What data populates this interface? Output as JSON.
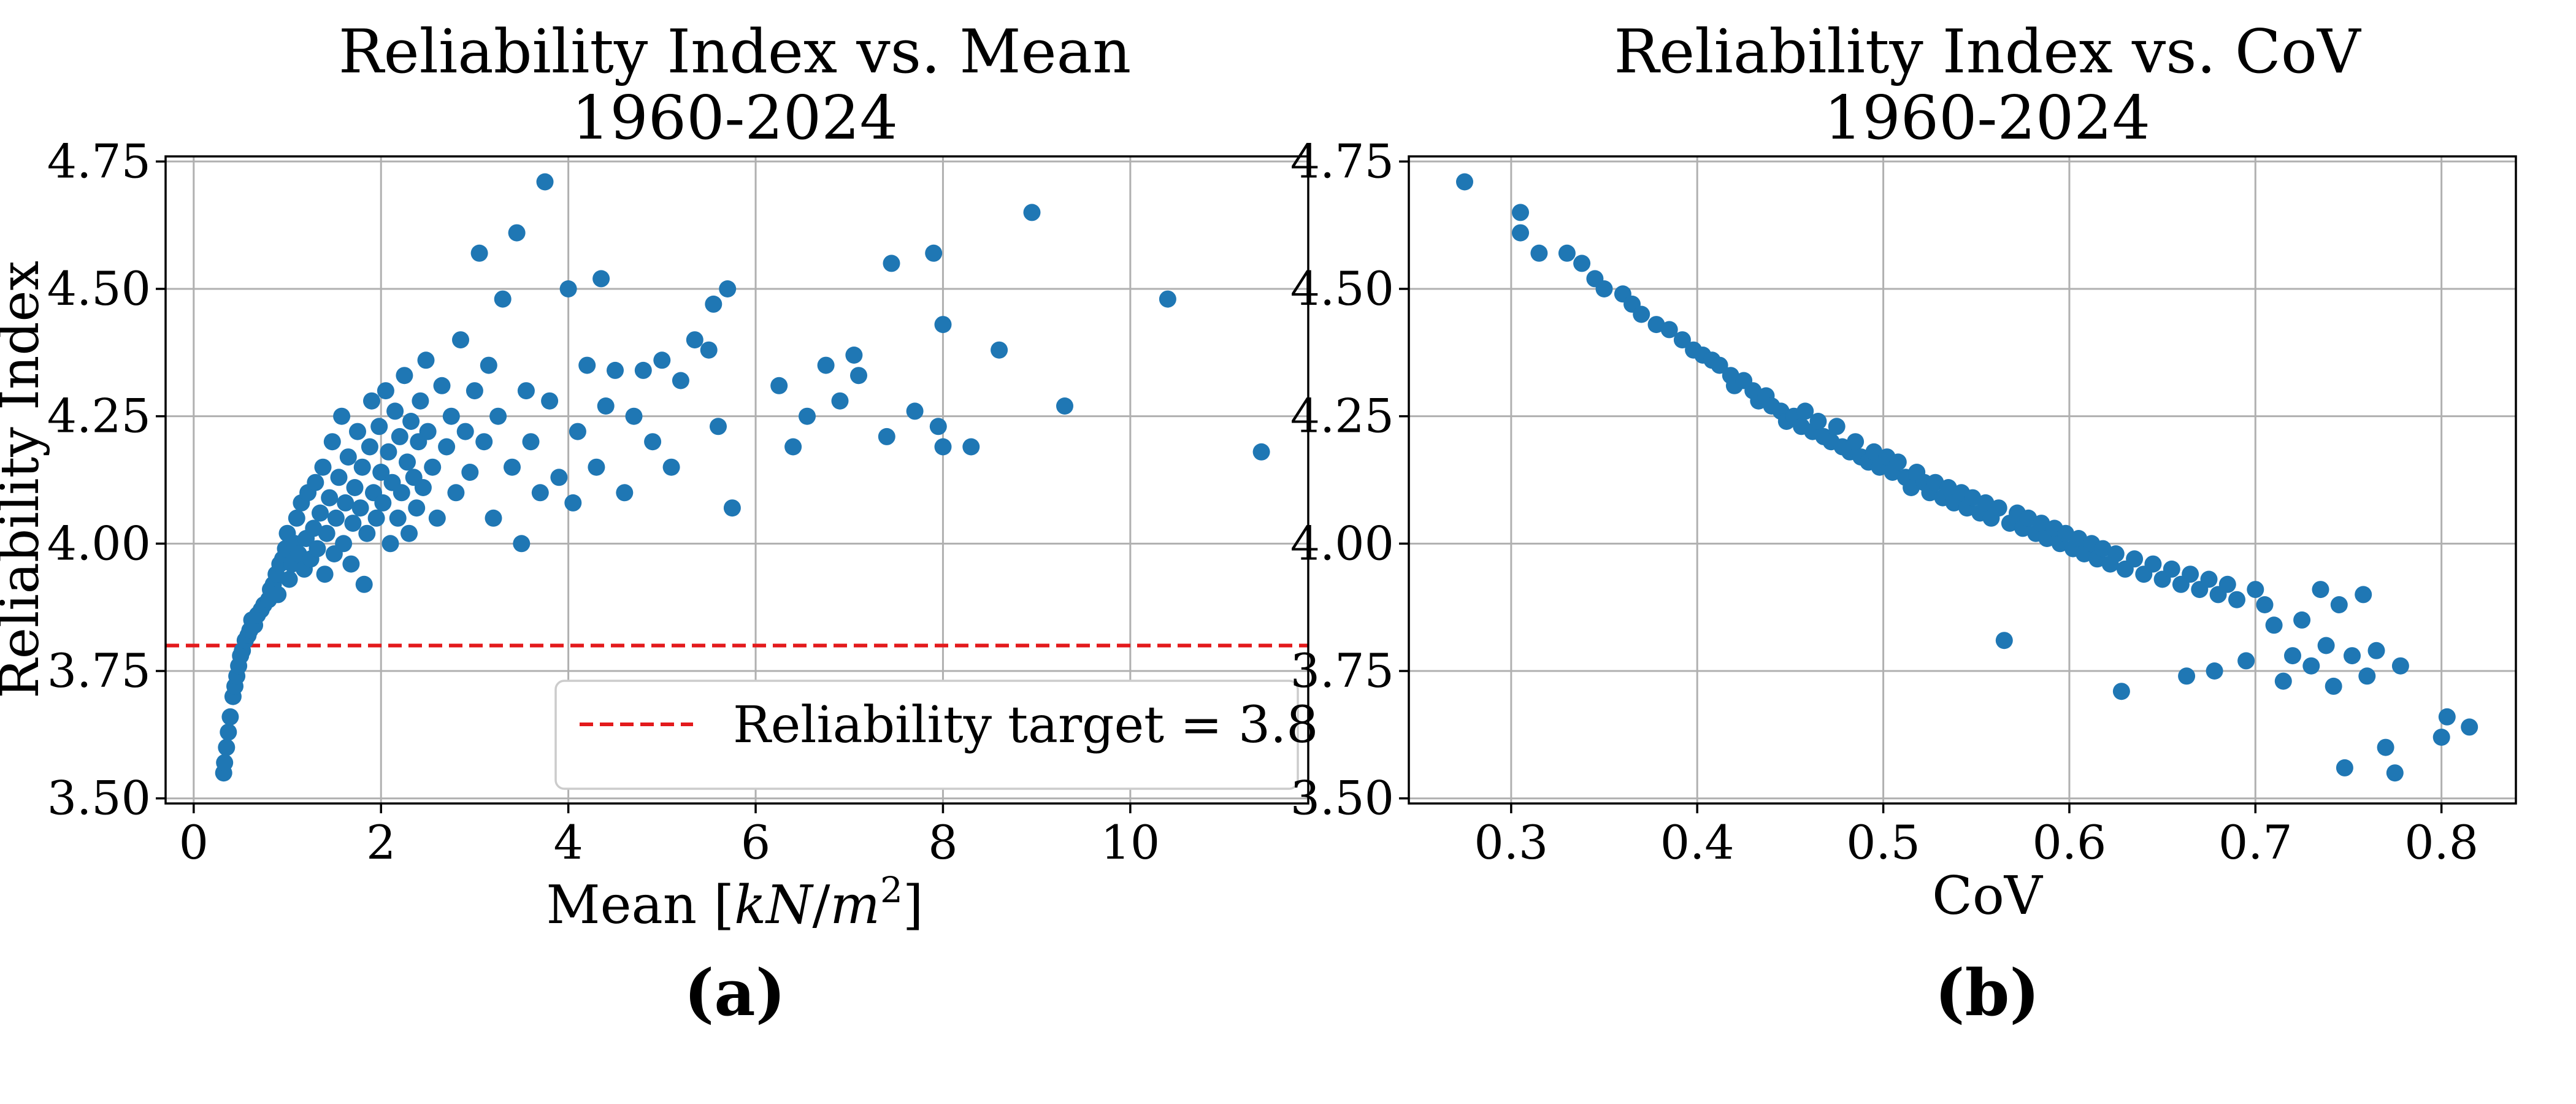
{
  "colors": {
    "marker": "#1f77b4",
    "target_line": "#e31a1c",
    "grid": "#b0b0b0",
    "axes": "#000000"
  },
  "chart_data": [
    {
      "type": "scatter",
      "panel_label": "(a)",
      "title": "Reliability Index vs. Mean",
      "subtitle": "1960-2024",
      "xlabel": "Mean [kN/m²]",
      "ylabel": "Reliability Index",
      "xlim": [
        -0.3,
        11.9
      ],
      "ylim": [
        3.49,
        4.76
      ],
      "xticks": [
        0,
        2,
        4,
        6,
        8,
        10
      ],
      "yticks": [
        3.5,
        3.75,
        4.0,
        4.25,
        4.5,
        4.75
      ],
      "xtick_labels": [
        "0",
        "2",
        "4",
        "6",
        "8",
        "10"
      ],
      "ytick_labels": [
        "3.50",
        "3.75",
        "4.00",
        "4.25",
        "4.50",
        "4.75"
      ],
      "grid": true,
      "legend_position": "lower-right",
      "reference_line": {
        "orientation": "horizontal",
        "y": 3.8,
        "style": "dashed",
        "label": "Reliability target = 3.8"
      },
      "points": [
        [
          0.32,
          3.55
        ],
        [
          0.33,
          3.57
        ],
        [
          0.35,
          3.6
        ],
        [
          0.37,
          3.63
        ],
        [
          0.39,
          3.66
        ],
        [
          0.42,
          3.7
        ],
        [
          0.44,
          3.72
        ],
        [
          0.46,
          3.74
        ],
        [
          0.48,
          3.76
        ],
        [
          0.5,
          3.78
        ],
        [
          0.52,
          3.79
        ],
        [
          0.55,
          3.81
        ],
        [
          0.58,
          3.82
        ],
        [
          0.6,
          3.83
        ],
        [
          0.62,
          3.85
        ],
        [
          0.65,
          3.84
        ],
        [
          0.68,
          3.86
        ],
        [
          0.72,
          3.87
        ],
        [
          0.75,
          3.88
        ],
        [
          0.8,
          3.89
        ],
        [
          0.82,
          3.91
        ],
        [
          0.85,
          3.92
        ],
        [
          0.88,
          3.94
        ],
        [
          0.9,
          3.9
        ],
        [
          0.92,
          3.96
        ],
        [
          0.95,
          3.97
        ],
        [
          0.98,
          3.99
        ],
        [
          1.0,
          4.02
        ],
        [
          1.02,
          3.93
        ],
        [
          1.05,
          3.96
        ],
        [
          1.08,
          4.0
        ],
        [
          1.1,
          4.05
        ],
        [
          1.12,
          3.98
        ],
        [
          1.15,
          4.08
        ],
        [
          1.18,
          3.95
        ],
        [
          1.2,
          4.01
        ],
        [
          1.22,
          4.1
        ],
        [
          1.25,
          3.97
        ],
        [
          1.28,
          4.03
        ],
        [
          1.3,
          4.12
        ],
        [
          1.32,
          3.99
        ],
        [
          1.35,
          4.06
        ],
        [
          1.38,
          4.15
        ],
        [
          1.4,
          3.94
        ],
        [
          1.42,
          4.02
        ],
        [
          1.45,
          4.09
        ],
        [
          1.48,
          4.2
        ],
        [
          1.5,
          3.98
        ],
        [
          1.52,
          4.05
        ],
        [
          1.55,
          4.13
        ],
        [
          1.58,
          4.25
        ],
        [
          1.6,
          4.0
        ],
        [
          1.62,
          4.08
        ],
        [
          1.65,
          4.17
        ],
        [
          1.68,
          3.96
        ],
        [
          1.7,
          4.04
        ],
        [
          1.72,
          4.11
        ],
        [
          1.75,
          4.22
        ],
        [
          1.78,
          4.07
        ],
        [
          1.8,
          4.15
        ],
        [
          1.82,
          3.92
        ],
        [
          1.85,
          4.02
        ],
        [
          1.88,
          4.19
        ],
        [
          1.9,
          4.28
        ],
        [
          1.92,
          4.1
        ],
        [
          1.95,
          4.05
        ],
        [
          1.98,
          4.23
        ],
        [
          2.0,
          4.14
        ],
        [
          2.02,
          4.08
        ],
        [
          2.05,
          4.3
        ],
        [
          2.08,
          4.18
        ],
        [
          2.1,
          4.0
        ],
        [
          2.12,
          4.12
        ],
        [
          2.15,
          4.26
        ],
        [
          2.18,
          4.05
        ],
        [
          2.2,
          4.21
        ],
        [
          2.22,
          4.1
        ],
        [
          2.25,
          4.33
        ],
        [
          2.28,
          4.16
        ],
        [
          2.3,
          4.02
        ],
        [
          2.32,
          4.24
        ],
        [
          2.35,
          4.13
        ],
        [
          2.38,
          4.07
        ],
        [
          2.4,
          4.2
        ],
        [
          2.42,
          4.28
        ],
        [
          2.45,
          4.11
        ],
        [
          2.48,
          4.36
        ],
        [
          2.5,
          4.22
        ],
        [
          2.55,
          4.15
        ],
        [
          2.6,
          4.05
        ],
        [
          2.65,
          4.31
        ],
        [
          2.7,
          4.19
        ],
        [
          2.75,
          4.25
        ],
        [
          2.8,
          4.1
        ],
        [
          2.85,
          4.4
        ],
        [
          2.9,
          4.22
        ],
        [
          2.95,
          4.14
        ],
        [
          3.0,
          4.3
        ],
        [
          3.05,
          4.57
        ],
        [
          3.1,
          4.2
        ],
        [
          3.15,
          4.35
        ],
        [
          3.2,
          4.05
        ],
        [
          3.25,
          4.25
        ],
        [
          3.3,
          4.48
        ],
        [
          3.4,
          4.15
        ],
        [
          3.45,
          4.61
        ],
        [
          3.5,
          4.0
        ],
        [
          3.55,
          4.3
        ],
        [
          3.6,
          4.2
        ],
        [
          3.7,
          4.1
        ],
        [
          3.75,
          4.71
        ],
        [
          3.8,
          4.28
        ],
        [
          3.9,
          4.13
        ],
        [
          4.0,
          4.5
        ],
        [
          4.05,
          4.08
        ],
        [
          4.1,
          4.22
        ],
        [
          4.2,
          4.35
        ],
        [
          4.3,
          4.15
        ],
        [
          4.35,
          4.52
        ],
        [
          4.4,
          4.27
        ],
        [
          4.5,
          4.34
        ],
        [
          4.6,
          4.1
        ],
        [
          4.7,
          4.25
        ],
        [
          4.8,
          4.34
        ],
        [
          4.9,
          4.2
        ],
        [
          5.0,
          4.36
        ],
        [
          5.1,
          4.15
        ],
        [
          5.2,
          4.32
        ],
        [
          5.35,
          4.4
        ],
        [
          5.5,
          4.38
        ],
        [
          5.55,
          4.47
        ],
        [
          5.6,
          4.23
        ],
        [
          5.7,
          4.5
        ],
        [
          5.75,
          4.07
        ],
        [
          6.25,
          4.31
        ],
        [
          6.4,
          4.19
        ],
        [
          6.55,
          4.25
        ],
        [
          6.75,
          4.35
        ],
        [
          6.9,
          4.28
        ],
        [
          7.05,
          4.37
        ],
        [
          7.1,
          4.33
        ],
        [
          7.4,
          4.21
        ],
        [
          7.45,
          4.55
        ],
        [
          7.7,
          4.26
        ],
        [
          7.9,
          4.57
        ],
        [
          7.95,
          4.23
        ],
        [
          8.0,
          4.43
        ],
        [
          8.0,
          4.19
        ],
        [
          8.3,
          4.19
        ],
        [
          8.6,
          4.38
        ],
        [
          8.95,
          4.65
        ],
        [
          9.3,
          4.27
        ],
        [
          10.4,
          4.48
        ],
        [
          11.4,
          4.18
        ]
      ]
    },
    {
      "type": "scatter",
      "panel_label": "(b)",
      "title": "Reliability Index vs. CoV",
      "subtitle": "1960-2024",
      "xlabel": "CoV",
      "ylabel": "",
      "xlim": [
        0.245,
        0.84
      ],
      "ylim": [
        3.49,
        4.76
      ],
      "xticks": [
        0.3,
        0.4,
        0.5,
        0.6,
        0.7,
        0.8
      ],
      "yticks": [
        3.5,
        3.75,
        4.0,
        4.25,
        4.5,
        4.75
      ],
      "xtick_labels": [
        "0.3",
        "0.4",
        "0.5",
        "0.6",
        "0.7",
        "0.8"
      ],
      "ytick_labels": [
        "3.50",
        "3.75",
        "4.00",
        "4.25",
        "4.50",
        "4.75"
      ],
      "grid": true,
      "points": [
        [
          0.275,
          4.71
        ],
        [
          0.305,
          4.65
        ],
        [
          0.305,
          4.61
        ],
        [
          0.315,
          4.57
        ],
        [
          0.33,
          4.57
        ],
        [
          0.338,
          4.55
        ],
        [
          0.345,
          4.52
        ],
        [
          0.35,
          4.5
        ],
        [
          0.36,
          4.49
        ],
        [
          0.365,
          4.47
        ],
        [
          0.37,
          4.45
        ],
        [
          0.378,
          4.43
        ],
        [
          0.385,
          4.42
        ],
        [
          0.392,
          4.4
        ],
        [
          0.398,
          4.38
        ],
        [
          0.403,
          4.37
        ],
        [
          0.408,
          4.36
        ],
        [
          0.412,
          4.35
        ],
        [
          0.418,
          4.33
        ],
        [
          0.42,
          4.31
        ],
        [
          0.425,
          4.32
        ],
        [
          0.43,
          4.3
        ],
        [
          0.433,
          4.28
        ],
        [
          0.437,
          4.29
        ],
        [
          0.44,
          4.27
        ],
        [
          0.445,
          4.26
        ],
        [
          0.448,
          4.24
        ],
        [
          0.452,
          4.25
        ],
        [
          0.456,
          4.23
        ],
        [
          0.458,
          4.26
        ],
        [
          0.462,
          4.22
        ],
        [
          0.465,
          4.24
        ],
        [
          0.468,
          4.21
        ],
        [
          0.472,
          4.2
        ],
        [
          0.475,
          4.23
        ],
        [
          0.478,
          4.19
        ],
        [
          0.482,
          4.18
        ],
        [
          0.485,
          4.2
        ],
        [
          0.488,
          4.17
        ],
        [
          0.492,
          4.16
        ],
        [
          0.495,
          4.18
        ],
        [
          0.498,
          4.15
        ],
        [
          0.502,
          4.17
        ],
        [
          0.505,
          4.14
        ],
        [
          0.508,
          4.16
        ],
        [
          0.512,
          4.13
        ],
        [
          0.515,
          4.11
        ],
        [
          0.518,
          4.14
        ],
        [
          0.522,
          4.12
        ],
        [
          0.525,
          4.1
        ],
        [
          0.528,
          4.12
        ],
        [
          0.532,
          4.09
        ],
        [
          0.535,
          4.11
        ],
        [
          0.538,
          4.08
        ],
        [
          0.542,
          4.1
        ],
        [
          0.545,
          4.07
        ],
        [
          0.548,
          4.09
        ],
        [
          0.552,
          4.06
        ],
        [
          0.555,
          4.08
        ],
        [
          0.558,
          4.05
        ],
        [
          0.562,
          4.07
        ],
        [
          0.565,
          3.81
        ],
        [
          0.568,
          4.04
        ],
        [
          0.572,
          4.06
        ],
        [
          0.575,
          4.03
        ],
        [
          0.578,
          4.05
        ],
        [
          0.582,
          4.02
        ],
        [
          0.585,
          4.04
        ],
        [
          0.588,
          4.01
        ],
        [
          0.592,
          4.03
        ],
        [
          0.595,
          4.0
        ],
        [
          0.598,
          4.02
        ],
        [
          0.602,
          3.99
        ],
        [
          0.605,
          4.01
        ],
        [
          0.608,
          3.98
        ],
        [
          0.612,
          4.0
        ],
        [
          0.615,
          3.97
        ],
        [
          0.618,
          3.99
        ],
        [
          0.622,
          3.96
        ],
        [
          0.625,
          3.98
        ],
        [
          0.628,
          3.71
        ],
        [
          0.63,
          3.95
        ],
        [
          0.635,
          3.97
        ],
        [
          0.64,
          3.94
        ],
        [
          0.645,
          3.96
        ],
        [
          0.65,
          3.93
        ],
        [
          0.655,
          3.95
        ],
        [
          0.66,
          3.92
        ],
        [
          0.663,
          3.74
        ],
        [
          0.665,
          3.94
        ],
        [
          0.67,
          3.91
        ],
        [
          0.675,
          3.93
        ],
        [
          0.678,
          3.75
        ],
        [
          0.68,
          3.9
        ],
        [
          0.685,
          3.92
        ],
        [
          0.69,
          3.89
        ],
        [
          0.695,
          3.77
        ],
        [
          0.7,
          3.91
        ],
        [
          0.705,
          3.88
        ],
        [
          0.71,
          3.84
        ],
        [
          0.715,
          3.73
        ],
        [
          0.72,
          3.78
        ],
        [
          0.725,
          3.85
        ],
        [
          0.73,
          3.76
        ],
        [
          0.735,
          3.91
        ],
        [
          0.738,
          3.8
        ],
        [
          0.742,
          3.72
        ],
        [
          0.745,
          3.88
        ],
        [
          0.748,
          3.56
        ],
        [
          0.752,
          3.78
        ],
        [
          0.758,
          3.9
        ],
        [
          0.76,
          3.74
        ],
        [
          0.765,
          3.79
        ],
        [
          0.77,
          3.6
        ],
        [
          0.775,
          3.55
        ],
        [
          0.778,
          3.76
        ],
        [
          0.8,
          3.62
        ],
        [
          0.803,
          3.66
        ],
        [
          0.815,
          3.64
        ]
      ]
    }
  ]
}
